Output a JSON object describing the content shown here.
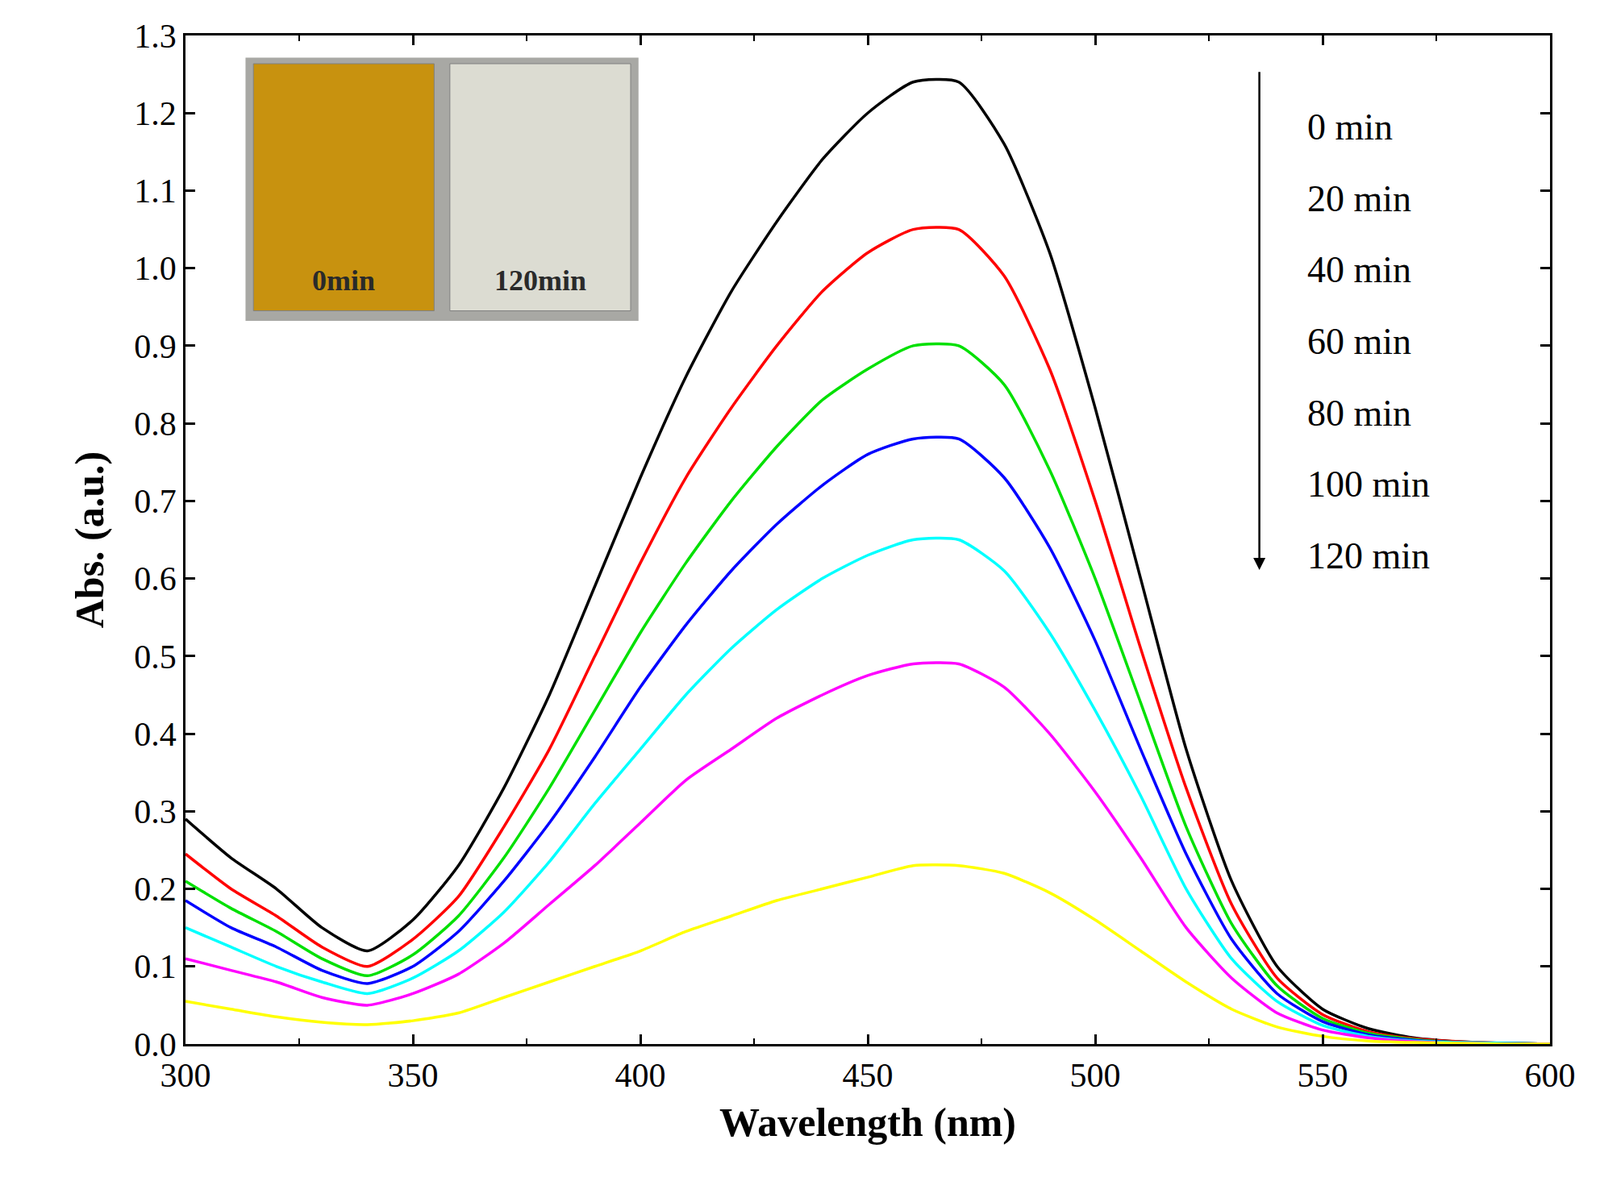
{
  "chart_data": {
    "type": "line",
    "xlabel": "Wavelength (nm)",
    "ylabel": "Abs. (a.u.)",
    "xlim": [
      300,
      600
    ],
    "ylim": [
      0,
      1.3
    ],
    "xticks": [
      300,
      350,
      400,
      450,
      500,
      550,
      600
    ],
    "yticks": [
      {
        "value": 0,
        "label": "0.0"
      },
      0.1,
      0.2,
      0.3,
      0.4,
      0.5,
      0.6,
      0.7,
      0.8,
      0.9,
      {
        "value": 1,
        "label": "1.0"
      },
      1.1,
      1.2,
      1.3
    ],
    "grid": false,
    "x": [
      300,
      310,
      320,
      330,
      340,
      350,
      360,
      370,
      380,
      390,
      400,
      410,
      420,
      430,
      440,
      450,
      460,
      470,
      480,
      490,
      500,
      510,
      520,
      530,
      540,
      550,
      560,
      570,
      580,
      590,
      600
    ],
    "series": [
      {
        "name": "0 min",
        "color": "#000000",
        "values": [
          0.29,
          0.24,
          0.2,
          0.15,
          0.12,
          0.16,
          0.23,
          0.33,
          0.45,
          0.59,
          0.73,
          0.86,
          0.97,
          1.06,
          1.14,
          1.2,
          1.24,
          1.24,
          1.16,
          1.02,
          0.82,
          0.6,
          0.38,
          0.21,
          0.1,
          0.045,
          0.02,
          0.008,
          0.003,
          0.001,
          0.0
        ]
      },
      {
        "name": "20 min",
        "color": "#ff0000",
        "values": [
          0.245,
          0.2,
          0.165,
          0.125,
          0.1,
          0.135,
          0.19,
          0.28,
          0.38,
          0.5,
          0.62,
          0.73,
          0.82,
          0.9,
          0.97,
          1.02,
          1.05,
          1.05,
          0.99,
          0.87,
          0.7,
          0.51,
          0.33,
          0.18,
          0.085,
          0.038,
          0.016,
          0.007,
          0.003,
          0.001,
          0.0
        ]
      },
      {
        "name": "40 min",
        "color": "#00e000",
        "values": [
          0.21,
          0.175,
          0.145,
          0.11,
          0.088,
          0.115,
          0.165,
          0.24,
          0.33,
          0.43,
          0.53,
          0.62,
          0.7,
          0.77,
          0.83,
          0.87,
          0.9,
          0.9,
          0.85,
          0.74,
          0.6,
          0.44,
          0.28,
          0.155,
          0.075,
          0.033,
          0.014,
          0.006,
          0.002,
          0.001,
          0.0
        ]
      },
      {
        "name": "60 min",
        "color": "#0000ff",
        "values": [
          0.185,
          0.15,
          0.125,
          0.095,
          0.078,
          0.1,
          0.145,
          0.21,
          0.285,
          0.37,
          0.46,
          0.54,
          0.61,
          0.67,
          0.72,
          0.76,
          0.78,
          0.78,
          0.73,
          0.64,
          0.52,
          0.38,
          0.245,
          0.135,
          0.065,
          0.029,
          0.012,
          0.005,
          0.002,
          0.001,
          0.0
        ]
      },
      {
        "name": "80 min",
        "color": "#00ffff",
        "values": [
          0.15,
          0.125,
          0.1,
          0.08,
          0.065,
          0.085,
          0.12,
          0.17,
          0.235,
          0.31,
          0.38,
          0.45,
          0.51,
          0.56,
          0.6,
          0.63,
          0.65,
          0.65,
          0.61,
          0.53,
          0.43,
          0.32,
          0.2,
          0.11,
          0.055,
          0.024,
          0.01,
          0.004,
          0.002,
          0.001,
          0.0
        ]
      },
      {
        "name": "100 min",
        "color": "#ff00ff",
        "values": [
          0.11,
          0.095,
          0.08,
          0.06,
          0.05,
          0.065,
          0.09,
          0.13,
          0.18,
          0.23,
          0.285,
          0.34,
          0.38,
          0.42,
          0.45,
          0.475,
          0.49,
          0.49,
          0.46,
          0.4,
          0.325,
          0.24,
          0.15,
          0.085,
          0.04,
          0.018,
          0.008,
          0.003,
          0.001,
          0.0,
          0.0
        ]
      },
      {
        "name": "120 min",
        "color": "#ffff00",
        "values": [
          0.055,
          0.045,
          0.035,
          0.028,
          0.025,
          0.03,
          0.04,
          0.06,
          0.08,
          0.1,
          0.12,
          0.145,
          0.165,
          0.185,
          0.2,
          0.215,
          0.23,
          0.23,
          0.22,
          0.195,
          0.16,
          0.12,
          0.08,
          0.045,
          0.022,
          0.01,
          0.004,
          0.002,
          0.001,
          0.0,
          0.0
        ]
      }
    ],
    "inset": {
      "labels": [
        "0min",
        "120min"
      ],
      "colors": [
        "#c8920f",
        "#dcdcd2"
      ]
    }
  }
}
